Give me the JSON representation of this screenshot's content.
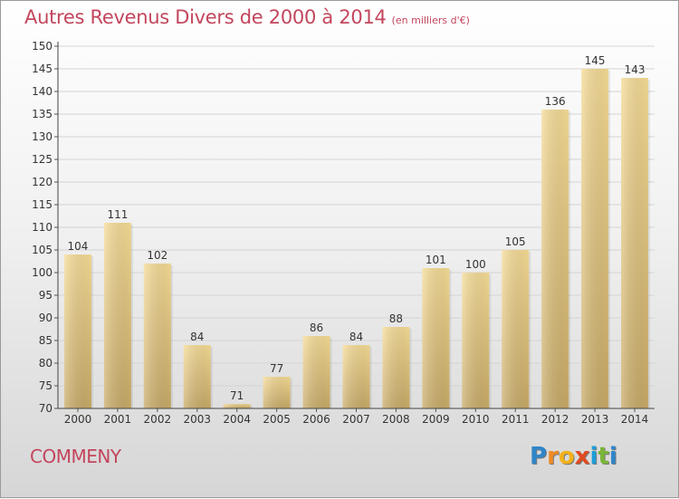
{
  "header": {
    "title": "Autres Revenus Divers de 2000 à 2014",
    "unit": "(en milliers d'€)"
  },
  "footer": {
    "commune": "COMMENY",
    "logo_letters": [
      {
        "ch": "P",
        "color": "#2f86c9"
      },
      {
        "ch": "r",
        "color": "#f08a24"
      },
      {
        "ch": "o",
        "color": "#f3b21a"
      },
      {
        "ch": "x",
        "color": "#e04a1f"
      },
      {
        "ch": "i",
        "color": "#1d9fd9"
      },
      {
        "ch": "t",
        "color": "#79b536"
      },
      {
        "ch": "i",
        "color": "#2f86c9"
      }
    ]
  },
  "colors": {
    "title": "#c3465d",
    "bar_light": "#f6dc96",
    "bar_dark": "#c9ab68",
    "axis": "#444444"
  },
  "chart_data": {
    "type": "bar",
    "title": "Autres Revenus Divers de 2000 à 2014",
    "subtitle": "(en milliers d'€)",
    "categories": [
      "2000",
      "2001",
      "2002",
      "2003",
      "2004",
      "2005",
      "2006",
      "2007",
      "2008",
      "2009",
      "2010",
      "2011",
      "2012",
      "2013",
      "2014"
    ],
    "values": [
      104,
      111,
      102,
      84,
      71,
      77,
      86,
      84,
      88,
      101,
      100,
      105,
      136,
      145,
      143
    ],
    "ylim": [
      70,
      150
    ],
    "yticks": [
      70,
      75,
      80,
      85,
      90,
      95,
      100,
      105,
      110,
      115,
      120,
      125,
      130,
      135,
      140,
      145,
      150
    ],
    "grid": true,
    "legend": "none"
  }
}
